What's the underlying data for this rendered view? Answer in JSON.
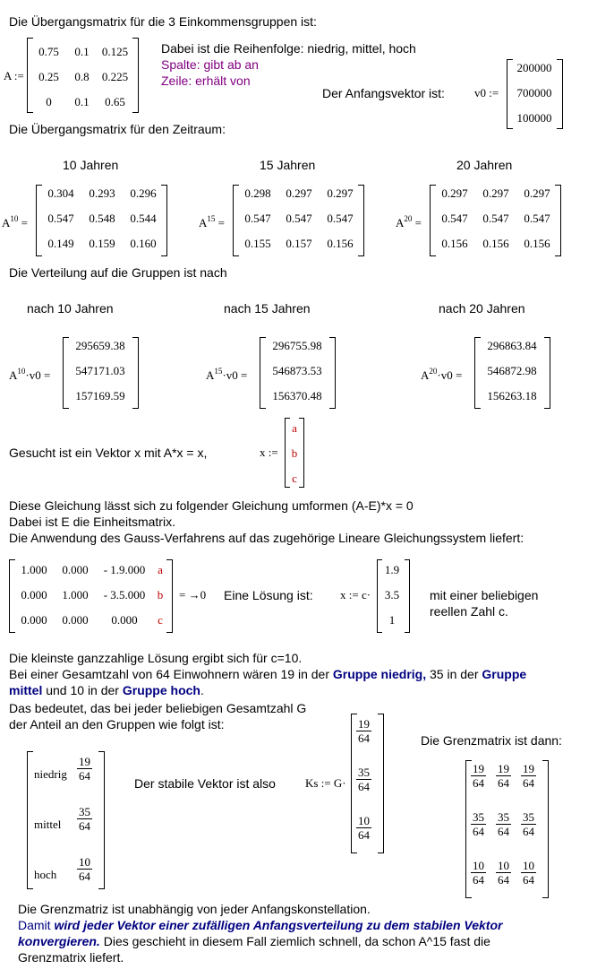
{
  "intro": "Die Übergangsmatrix für die 3 Einkommensgruppen ist:",
  "A_label": "A :=",
  "A": [
    [
      "0.75",
      "0.1",
      "0.125"
    ],
    [
      "0.25",
      "0.8",
      "0.225"
    ],
    [
      "0",
      "0.1",
      "0.65"
    ]
  ],
  "order_line": "Dabei ist die Reihenfolge: niedrig, mittel, hoch",
  "spalte_line": "Spalte: gibt ab an",
  "zeile_line": "Zeile:    erhält von",
  "v0_text": "Der Anfangsvektor ist:",
  "v0_label": "v0 :=",
  "v0": [
    "200000",
    "700000",
    "100000"
  ],
  "period_heading": "Die Übergangsmatrix für den Zeitraum:",
  "periods": [
    {
      "title": "10 Jahren",
      "exp": "10",
      "matrix": [
        [
          "0.304",
          "0.293",
          "0.296"
        ],
        [
          "0.547",
          "0.548",
          "0.544"
        ],
        [
          "0.149",
          "0.159",
          "0.160"
        ]
      ]
    },
    {
      "title": "15 Jahren",
      "exp": "15",
      "matrix": [
        [
          "0.298",
          "0.297",
          "0.297"
        ],
        [
          "0.547",
          "0.547",
          "0.547"
        ],
        [
          "0.155",
          "0.157",
          "0.156"
        ]
      ]
    },
    {
      "title": "20 Jahren",
      "exp": "20",
      "matrix": [
        [
          "0.297",
          "0.297",
          "0.297"
        ],
        [
          "0.547",
          "0.547",
          "0.547"
        ],
        [
          "0.156",
          "0.156",
          "0.156"
        ]
      ]
    }
  ],
  "dist_heading": "Die Verteilung auf die Gruppen ist nach",
  "dists": [
    {
      "title": "nach 10 Jahren",
      "exp": "10",
      "vec": [
        "295659.38",
        "547171.03",
        "157169.59"
      ]
    },
    {
      "title": "nach 15 Jahren",
      "exp": "15",
      "vec": [
        "296755.98",
        "546873.53",
        "156370.48"
      ]
    },
    {
      "title": "nach 20 Jahren",
      "exp": "20",
      "vec": [
        "296863.84",
        "546872.98",
        "156263.18"
      ]
    }
  ],
  "base_A": "A",
  "times_v0": "·v0 =",
  "eq_sign": "=",
  "search_text": "Gesucht ist ein Vektor x  mit  A*x = x,",
  "x_label": "x :=",
  "x_vec": [
    "a",
    "b",
    "c"
  ],
  "transform_1": "Diese Gleichung lässt sich zu folgender Gleichung umformen (A-E)*x = 0",
  "transform_2": "Dabei ist E die Einheitsmatrix.",
  "transform_3": "Die Anwendung des Gauss-Verfahrens auf das zugehörige Lineare Gleichungssystem liefert:",
  "gauss": [
    [
      "1.000",
      "0.000",
      "- 1.9.000"
    ],
    [
      "0.000",
      "1.000",
      "- 3.5.000"
    ],
    [
      "0.000",
      "0.000",
      "0.000"
    ]
  ],
  "gauss_rhs": "= →0",
  "solution_text": "Eine Lösung ist:",
  "sol_label": "x := c·",
  "sol_vec": [
    "1.9",
    "3.5",
    "1"
  ],
  "sol_note_1": "mit einer beliebigen",
  "sol_note_2": "reellen Zahl c.",
  "integer_line": "Die kleinste ganzzahlige Lösung ergibt sich für c=10.",
  "total_a": "Bei einer Gesamtzahl von 64 Einwohnern wären 19 in der ",
  "total_b": "Gruppe niedrig,",
  "total_c": " 35 in der ",
  "total_d": "Gruppe",
  "total_e": "mittel",
  "total_f": " und 10 in der ",
  "total_g": "Gruppe hoch",
  "total_h": ".",
  "share_1": "Das bedeutet, das bei jeder beliebigen Gesamtzahl G",
  "share_2": "der Anteil an den Gruppen wie folgt ist:",
  "grenz_heading": "Die Grenzmatrix ist dann:",
  "groups": [
    {
      "name": "niedrig",
      "num": "19",
      "den": "64"
    },
    {
      "name": "mittel",
      "num": "35",
      "den": "64"
    },
    {
      "name": "hoch",
      "num": "10",
      "den": "64"
    }
  ],
  "stable_text": "Der stabile Vektor ist also",
  "ks_label": "Ks := G·",
  "final_1": "Die Grenzmatriz ist unabhängig von jeder Anfangskonstellation.",
  "final_2a": "Damit ",
  "final_2b": "wird jeder Vektor einer zufälligen Anfangsverteilung zu dem stabilen Vektor",
  "final_3a": "konvergieren.",
  "final_3b": " Dies geschieht in diesem Fall ziemlich schnell, da schon A^15 fast die",
  "final_4": "Grenzmatrix liefert."
}
